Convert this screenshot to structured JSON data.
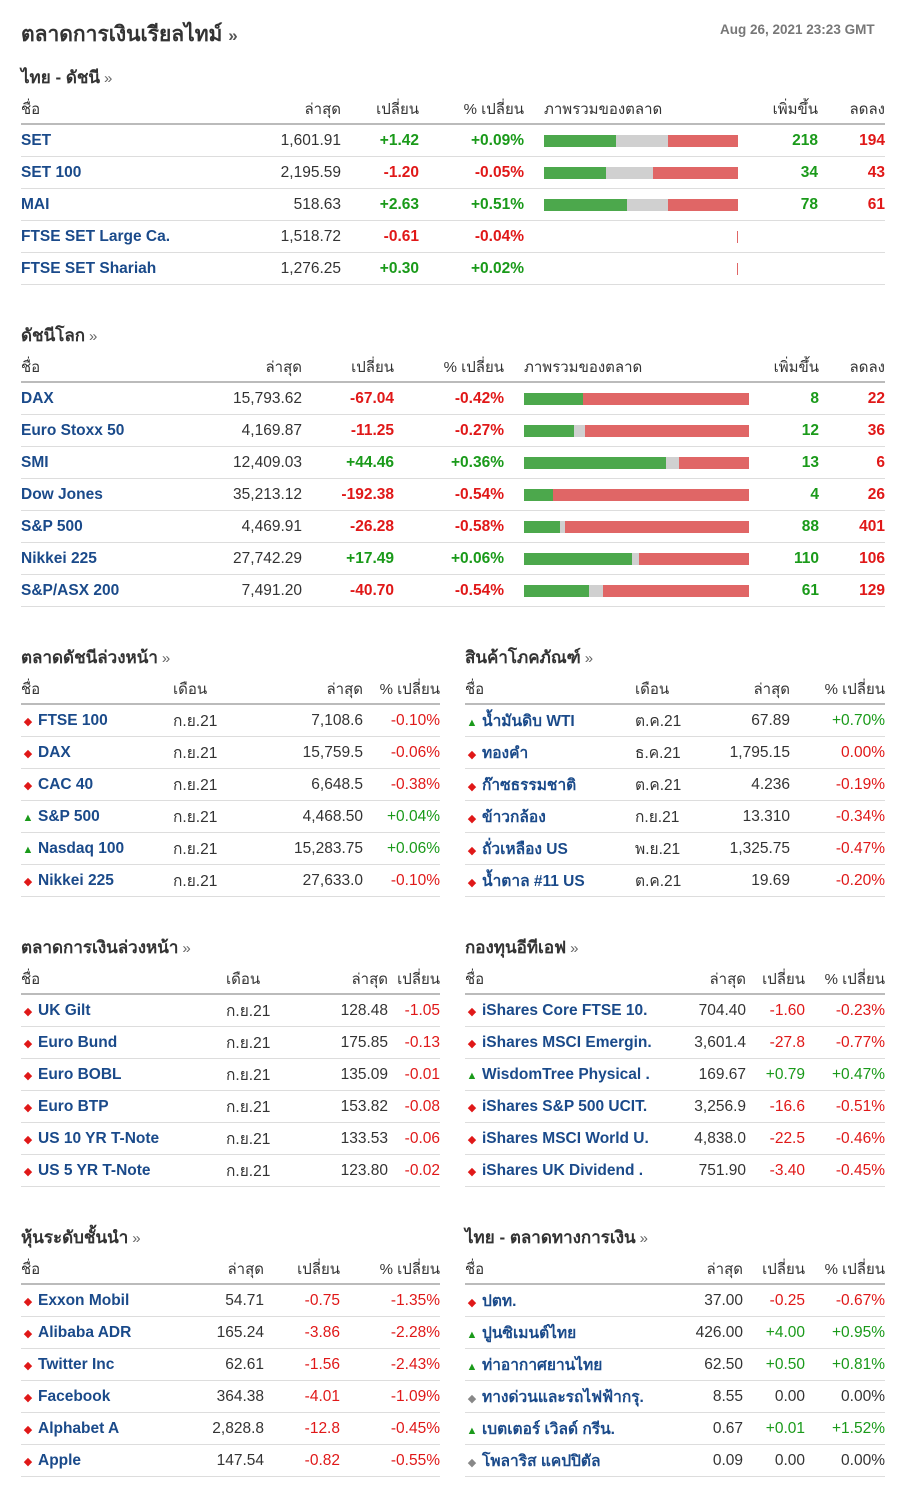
{
  "page": {
    "title": "ตลาดการเงินเรียลไทม์",
    "arrow": "»",
    "timestamp": "Aug 26, 2021 23:23 GMT"
  },
  "thai_indices": {
    "title": "ไทย - ดัชนี",
    "arrow": "»",
    "headers": [
      "ชื่อ",
      "ล่าสุด",
      "เปลี่ยน",
      "% เปลี่ยน",
      "ภาพรวมของตลาด",
      "เพิ่มขึ้น",
      "ลดลง"
    ],
    "rows": [
      {
        "name": "SET",
        "last": "1,601.91",
        "chg": "+1.42",
        "pct": "+0.09%",
        "dir": "pos",
        "adv": "218",
        "dec": "194",
        "bar": [
          0.37,
          0.27,
          0.36
        ]
      },
      {
        "name": "SET 100",
        "last": "2,195.59",
        "chg": "-1.20",
        "pct": "-0.05%",
        "dir": "neg",
        "adv": "34",
        "dec": "43",
        "bar": [
          0.32,
          0.24,
          0.44
        ]
      },
      {
        "name": "MAI",
        "last": "518.63",
        "chg": "+2.63",
        "pct": "+0.51%",
        "dir": "pos",
        "adv": "78",
        "dec": "61",
        "bar": [
          0.43,
          0.21,
          0.36
        ]
      },
      {
        "name": "FTSE SET Large Ca.",
        "last": "1,518.72",
        "chg": "-0.61",
        "pct": "-0.04%",
        "dir": "neg",
        "adv": "",
        "dec": "",
        "bar": null
      },
      {
        "name": "FTSE SET Shariah",
        "last": "1,276.25",
        "chg": "+0.30",
        "pct": "+0.02%",
        "dir": "pos",
        "adv": "",
        "dec": "",
        "bar": null
      }
    ]
  },
  "world_indices": {
    "title": "ดัชนีโลก",
    "arrow": "»",
    "headers": [
      "ชื่อ",
      "ล่าสุด",
      "เปลี่ยน",
      "% เปลี่ยน",
      "ภาพรวมของตลาด",
      "เพิ่มขึ้น",
      "ลดลง"
    ],
    "rows": [
      {
        "name": "DAX",
        "last": "15,793.62",
        "chg": "-67.04",
        "pct": "-0.42%",
        "dir": "neg",
        "adv": "8",
        "dec": "22",
        "bar": [
          0.26,
          0.0,
          0.74
        ]
      },
      {
        "name": "Euro Stoxx 50",
        "last": "4,169.87",
        "chg": "-11.25",
        "pct": "-0.27%",
        "dir": "neg",
        "adv": "12",
        "dec": "36",
        "bar": [
          0.22,
          0.05,
          0.73
        ]
      },
      {
        "name": "SMI",
        "last": "12,409.03",
        "chg": "+44.46",
        "pct": "+0.36%",
        "dir": "pos",
        "adv": "13",
        "dec": "6",
        "bar": [
          0.63,
          0.06,
          0.31
        ]
      },
      {
        "name": "Dow Jones",
        "last": "35,213.12",
        "chg": "-192.38",
        "pct": "-0.54%",
        "dir": "neg",
        "adv": "4",
        "dec": "26",
        "bar": [
          0.13,
          0.0,
          0.87
        ]
      },
      {
        "name": "S&P 500",
        "last": "4,469.91",
        "chg": "-26.28",
        "pct": "-0.58%",
        "dir": "neg",
        "adv": "88",
        "dec": "401",
        "bar": [
          0.16,
          0.02,
          0.82
        ]
      },
      {
        "name": "Nikkei 225",
        "last": "27,742.29",
        "chg": "+17.49",
        "pct": "+0.06%",
        "dir": "pos",
        "adv": "110",
        "dec": "106",
        "bar": [
          0.48,
          0.03,
          0.49
        ]
      },
      {
        "name": "S&P/ASX 200",
        "last": "7,491.20",
        "chg": "-40.70",
        "pct": "-0.54%",
        "dir": "neg",
        "adv": "61",
        "dec": "129",
        "bar": [
          0.29,
          0.06,
          0.65
        ]
      }
    ]
  },
  "index_futures": {
    "title": "ตลาดดัชนีล่วงหน้า",
    "arrow": "»",
    "headers": [
      "ชื่อ",
      "เดือน",
      "ล่าสุด",
      "% เปลี่ยน"
    ],
    "rows": [
      {
        "icon": "dn",
        "name": "FTSE 100",
        "month": "ก.ย.21",
        "last": "7,108.6",
        "pct": "-0.10%",
        "dir": "neg"
      },
      {
        "icon": "dn",
        "name": "DAX",
        "month": "ก.ย.21",
        "last": "15,759.5",
        "pct": "-0.06%",
        "dir": "neg"
      },
      {
        "icon": "dn",
        "name": "CAC 40",
        "month": "ก.ย.21",
        "last": "6,648.5",
        "pct": "-0.38%",
        "dir": "neg"
      },
      {
        "icon": "up",
        "name": "S&P 500",
        "month": "ก.ย.21",
        "last": "4,468.50",
        "pct": "+0.04%",
        "dir": "pos"
      },
      {
        "icon": "up",
        "name": "Nasdaq 100",
        "month": "ก.ย.21",
        "last": "15,283.75",
        "pct": "+0.06%",
        "dir": "pos"
      },
      {
        "icon": "dn",
        "name": "Nikkei 225",
        "month": "ก.ย.21",
        "last": "27,633.0",
        "pct": "-0.10%",
        "dir": "neg"
      }
    ]
  },
  "commodities": {
    "title": "สินค้าโภคภัณฑ์",
    "arrow": "»",
    "headers": [
      "ชื่อ",
      "เดือน",
      "ล่าสุด",
      "% เปลี่ยน"
    ],
    "rows": [
      {
        "icon": "up",
        "name": "น้ำมันดิบ WTI",
        "month": "ต.ค.21",
        "last": "67.89",
        "pct": "+0.70%",
        "dir": "pos"
      },
      {
        "icon": "dn",
        "name": "ทองคำ",
        "month": "ธ.ค.21",
        "last": "1,795.15",
        "pct": "0.00%",
        "dir": "neg"
      },
      {
        "icon": "dn",
        "name": "ก๊าซธรรมชาติ",
        "month": "ต.ค.21",
        "last": "4.236",
        "pct": "-0.19%",
        "dir": "neg"
      },
      {
        "icon": "dn",
        "name": "ข้าวกล้อง",
        "month": "ก.ย.21",
        "last": "13.310",
        "pct": "-0.34%",
        "dir": "neg"
      },
      {
        "icon": "dn",
        "name": "ถั่วเหลือง US",
        "month": "พ.ย.21",
        "last": "1,325.75",
        "pct": "-0.47%",
        "dir": "neg"
      },
      {
        "icon": "dn",
        "name": "น้ำตาล #11 US",
        "month": "ต.ค.21",
        "last": "19.69",
        "pct": "-0.20%",
        "dir": "neg"
      }
    ]
  },
  "bond_futures": {
    "title": "ตลาดการเงินล่วงหน้า",
    "arrow": "»",
    "headers": [
      "ชื่อ",
      "เดือน",
      "ล่าสุด",
      "เปลี่ยน"
    ],
    "rows": [
      {
        "icon": "dn",
        "name": "UK Gilt",
        "month": "ก.ย.21",
        "last": "128.48",
        "chg": "-1.05",
        "dir": "neg"
      },
      {
        "icon": "dn",
        "name": "Euro Bund",
        "month": "ก.ย.21",
        "last": "175.85",
        "chg": "-0.13",
        "dir": "neg"
      },
      {
        "icon": "dn",
        "name": "Euro BOBL",
        "month": "ก.ย.21",
        "last": "135.09",
        "chg": "-0.01",
        "dir": "neg"
      },
      {
        "icon": "dn",
        "name": "Euro BTP",
        "month": "ก.ย.21",
        "last": "153.82",
        "chg": "-0.08",
        "dir": "neg"
      },
      {
        "icon": "dn",
        "name": "US 10 YR T-Note",
        "month": "ก.ย.21",
        "last": "133.53",
        "chg": "-0.06",
        "dir": "neg"
      },
      {
        "icon": "dn",
        "name": "US 5 YR T-Note",
        "month": "ก.ย.21",
        "last": "123.80",
        "chg": "-0.02",
        "dir": "neg"
      }
    ]
  },
  "etfs": {
    "title": "กองทุนอีทีเอฟ",
    "arrow": "»",
    "headers": [
      "ชื่อ",
      "ล่าสุด",
      "เปลี่ยน",
      "% เปลี่ยน"
    ],
    "rows": [
      {
        "icon": "dn",
        "name": "iShares Core FTSE 10.",
        "last": "704.40",
        "chg": "-1.60",
        "pct": "-0.23%",
        "dir": "neg"
      },
      {
        "icon": "dn",
        "name": "iShares MSCI Emergin.",
        "last": "3,601.4",
        "chg": "-27.8",
        "pct": "-0.77%",
        "dir": "neg"
      },
      {
        "icon": "up",
        "name": "WisdomTree Physical .",
        "last": "169.67",
        "chg": "+0.79",
        "pct": "+0.47%",
        "dir": "pos"
      },
      {
        "icon": "dn",
        "name": "iShares S&P 500 UCIT.",
        "last": "3,256.9",
        "chg": "-16.6",
        "pct": "-0.51%",
        "dir": "neg"
      },
      {
        "icon": "dn",
        "name": "iShares MSCI World U.",
        "last": "4,838.0",
        "chg": "-22.5",
        "pct": "-0.46%",
        "dir": "neg"
      },
      {
        "icon": "dn",
        "name": "iShares UK Dividend .",
        "last": "751.90",
        "chg": "-3.40",
        "pct": "-0.45%",
        "dir": "neg"
      }
    ]
  },
  "top_stocks": {
    "title": "หุ้นระดับชั้นนำ",
    "arrow": "»",
    "headers": [
      "ชื่อ",
      "ล่าสุด",
      "เปลี่ยน",
      "% เปลี่ยน"
    ],
    "rows": [
      {
        "icon": "dn",
        "name": "Exxon Mobil",
        "last": "54.71",
        "chg": "-0.75",
        "pct": "-1.35%",
        "dir": "neg"
      },
      {
        "icon": "dn",
        "name": "Alibaba ADR",
        "last": "165.24",
        "chg": "-3.86",
        "pct": "-2.28%",
        "dir": "neg"
      },
      {
        "icon": "dn",
        "name": "Twitter Inc",
        "last": "62.61",
        "chg": "-1.56",
        "pct": "-2.43%",
        "dir": "neg"
      },
      {
        "icon": "dn",
        "name": "Facebook",
        "last": "364.38",
        "chg": "-4.01",
        "pct": "-1.09%",
        "dir": "neg"
      },
      {
        "icon": "dn",
        "name": "Alphabet A",
        "last": "2,828.8",
        "chg": "-12.8",
        "pct": "-0.45%",
        "dir": "neg"
      },
      {
        "icon": "dn",
        "name": "Apple",
        "last": "147.54",
        "chg": "-0.82",
        "pct": "-0.55%",
        "dir": "neg"
      }
    ]
  },
  "thai_financial": {
    "title": "ไทย - ตลาดทางการเงิน",
    "arrow": "»",
    "headers": [
      "ชื่อ",
      "ล่าสุด",
      "เปลี่ยน",
      "% เปลี่ยน"
    ],
    "rows": [
      {
        "icon": "dn",
        "name": "ปตท.",
        "last": "37.00",
        "chg": "-0.25",
        "pct": "-0.67%",
        "dir": "neg"
      },
      {
        "icon": "up",
        "name": "ปูนซิเมนต์ไทย",
        "last": "426.00",
        "chg": "+4.00",
        "pct": "+0.95%",
        "dir": "pos"
      },
      {
        "icon": "up",
        "name": "ท่าอากาศยานไทย",
        "last": "62.50",
        "chg": "+0.50",
        "pct": "+0.81%",
        "dir": "pos"
      },
      {
        "icon": "fl",
        "name": "ทางด่วนและรถไฟฟ้ากรุ.",
        "last": "8.55",
        "chg": "0.00",
        "pct": "0.00%",
        "dir": "flat"
      },
      {
        "icon": "up",
        "name": "เบตเตอร์ เวิลด์ กรีน.",
        "last": "0.67",
        "chg": "+0.01",
        "pct": "+1.52%",
        "dir": "pos"
      },
      {
        "icon": "fl",
        "name": "โพลาริส แคปปิตัล",
        "last": "0.09",
        "chg": "0.00",
        "pct": "0.00%",
        "dir": "flat"
      }
    ]
  },
  "colors": {
    "up": "#1a9a1a",
    "down": "#e01818",
    "bar_up": "#4ca84c",
    "bar_unch": "#d0d0d0",
    "bar_down": "#e06666",
    "link": "#1a4a8a"
  },
  "icons": {
    "dn": "down-arrow-icon",
    "up": "up-arrow-icon",
    "fl": "neutral-diamond-icon"
  }
}
